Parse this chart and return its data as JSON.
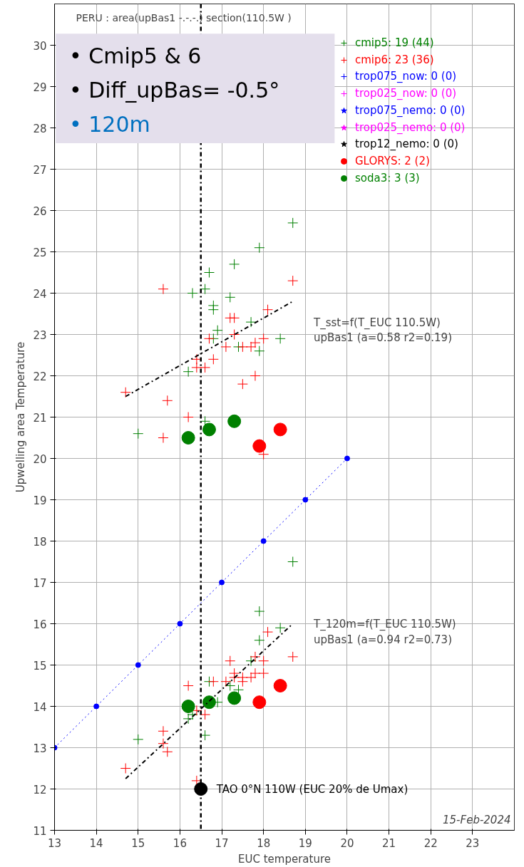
{
  "chart_data": {
    "type": "scatter",
    "xlabel": "EUC temperature",
    "ylabel": "Upwelling area Temperature",
    "xlim": [
      13,
      24
    ],
    "ylim": [
      11,
      31
    ],
    "xticks": [
      13,
      14,
      15,
      16,
      17,
      18,
      19,
      20,
      21,
      22,
      23
    ],
    "yticks": [
      11,
      12,
      13,
      14,
      15,
      16,
      17,
      18,
      19,
      20,
      21,
      22,
      23,
      24,
      25,
      26,
      27,
      28,
      29,
      30
    ],
    "grid": true,
    "legend": "top right",
    "series": [
      {
        "name": "cmip5: 19 (44)",
        "color": "#008000",
        "marker": "cross",
        "x": [
          15.0,
          16.2,
          16.3,
          16.6,
          16.7,
          16.8,
          16.8,
          16.9,
          17.2,
          17.3,
          17.4,
          17.7,
          17.9,
          17.9,
          18.4,
          18.7,
          16.6,
          16.8,
          18.7,
          17.9,
          17.9,
          18.4,
          17.7,
          17.2,
          17.4,
          16.9,
          16.7,
          16.2,
          16.6,
          15.0,
          16.3
        ],
        "values": [
          20.6,
          22.1,
          24.0,
          24.1,
          24.5,
          23.7,
          23.6,
          23.1,
          23.9,
          24.7,
          22.7,
          23.3,
          22.6,
          25.1,
          22.9,
          25.7,
          20.9,
          22.9,
          17.5,
          16.3,
          15.6,
          15.9,
          15.1,
          14.5,
          14.4,
          14.1,
          14.6,
          13.7,
          13.3,
          13.2,
          13.8
        ]
      },
      {
        "name": "cmip6: 23 (36)",
        "color": "#ff0000",
        "marker": "cross",
        "x": [
          14.7,
          15.6,
          15.7,
          15.6,
          16.2,
          16.4,
          16.4,
          16.6,
          16.7,
          16.8,
          17.1,
          17.2,
          17.3,
          17.3,
          17.5,
          17.5,
          17.7,
          17.8,
          17.8,
          18.0,
          18.1,
          18.7,
          18.0,
          14.7,
          15.6,
          15.6,
          15.7,
          16.2,
          16.4,
          16.4,
          16.6,
          16.8,
          17.1,
          17.2,
          17.3,
          17.3,
          17.5,
          17.5,
          17.7,
          17.8,
          17.8,
          18.0,
          18.0,
          18.1,
          18.7
        ],
        "values": [
          21.6,
          24.1,
          21.4,
          20.5,
          21.0,
          22.4,
          22.2,
          22.2,
          22.9,
          22.4,
          22.7,
          23.4,
          23.4,
          23.0,
          22.7,
          21.8,
          22.7,
          22.8,
          22.0,
          22.9,
          23.6,
          24.3,
          20.1,
          12.5,
          13.4,
          13.1,
          12.9,
          14.5,
          12.2,
          13.9,
          13.8,
          14.6,
          14.6,
          15.1,
          14.8,
          14.7,
          14.7,
          14.6,
          14.7,
          14.8,
          15.2,
          15.1,
          14.8,
          15.8,
          15.2
        ]
      },
      {
        "name": "trop075_now: 0 (0)",
        "color": "#0000ff",
        "marker": "cross"
      },
      {
        "name": "trop025_now: 0 (0)",
        "color": "#ff00ff",
        "marker": "cross"
      },
      {
        "name": "trop075_nemo: 0 (0)",
        "color": "#0000ff",
        "marker": "star"
      },
      {
        "name": "trop025_nemo: 0 (0)",
        "color": "#ff00ff",
        "marker": "star"
      },
      {
        "name": "trop12_nemo: 0 (0)",
        "color": "#000000",
        "marker": "star"
      },
      {
        "name": "GLORYS: 2 (2)",
        "color": "#ff0000",
        "marker": "circle",
        "x": [
          17.9,
          18.4,
          17.9,
          18.4
        ],
        "values": [
          20.3,
          20.7,
          14.1,
          14.5
        ]
      },
      {
        "name": "soda3: 3 (3)",
        "color": "#008000",
        "marker": "circle",
        "x": [
          16.2,
          16.7,
          17.3,
          16.2,
          16.7,
          17.3
        ],
        "values": [
          20.5,
          20.7,
          20.9,
          14.0,
          14.1,
          14.2
        ]
      },
      {
        "name": "TAO 0°N 110W (EUC 20% de Umax)",
        "color": "#000000",
        "marker": "circle",
        "x": [
          16.5
        ],
        "values": [
          12.0
        ]
      },
      {
        "type": "line",
        "color": "#0000ff",
        "marker": "circle",
        "line_style": "dotted",
        "x": [
          13,
          14,
          15,
          16,
          17,
          18,
          19,
          20
        ],
        "values": [
          13,
          14,
          15,
          16,
          17,
          18,
          19,
          20
        ]
      },
      {
        "type": "line",
        "color": "#000000",
        "marker": "none",
        "line_style": "dashdot",
        "x": [
          14.7,
          18.7
        ],
        "values": [
          21.5,
          23.8
        ]
      },
      {
        "type": "line",
        "color": "#000000",
        "marker": "none",
        "line_style": "dashdot",
        "x": [
          14.7,
          18.7
        ],
        "values": [
          12.25,
          16.0
        ]
      }
    ],
    "ref_lines": [
      {
        "axis": "x",
        "value": 16.5,
        "color": "#000000",
        "line_style": "dashdot"
      }
    ],
    "annotations": [
      "PERU : area(upBas1 -.-.-.)  section(110.5W )",
      "•     Cmip5 & 6",
      "•     Diff_upBas= -0.5°",
      "•     120m",
      "T_sst=f(T_EUC 110.5W)\nupBas1 (a=0.58 r2=0.19)",
      "T_120m=f(T_EUC 110.5W)\nupBas1 (a=0.94 r2=0.73)",
      "15-Feb-2024"
    ]
  }
}
